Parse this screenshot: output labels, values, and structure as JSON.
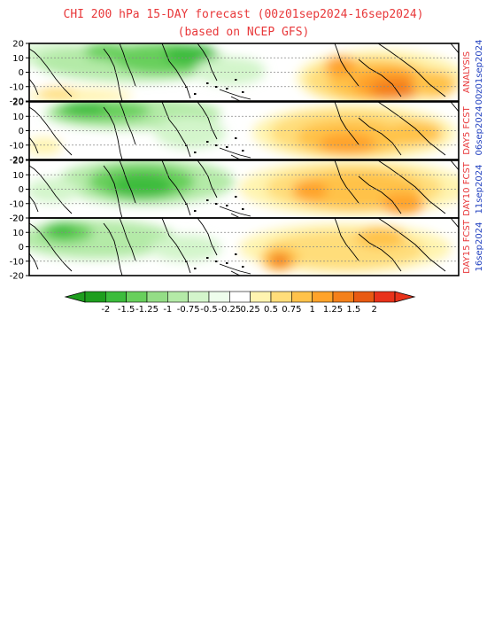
{
  "title_line1": "CHI 200 hPa 15-DAY forecast (00z01sep2024-16sep2024)",
  "title_line2": "(based on NCEP GFS)",
  "lat_ticks": [
    "20",
    "10",
    "0",
    "-10",
    "-20"
  ],
  "panels": [
    {
      "label": "ANALYSIS",
      "date": "00z01sep2024"
    },
    {
      "label": "DAY5 FCST",
      "date": "06sep2024"
    },
    {
      "label": "DAY10 FCST",
      "date": "11sep2024"
    },
    {
      "label": "DAY15 FCST",
      "date": "16sep2024"
    }
  ],
  "colorbar": {
    "labels": [
      "-2",
      "-1.5",
      "-1.25",
      "-1",
      "-0.75",
      "-0.5",
      "-0.25",
      "0.25",
      "0.5",
      "0.75",
      "1",
      "1.25",
      "1.5",
      "2"
    ],
    "colors": [
      "#1e9e1e",
      "#3cbc3c",
      "#68cf5c",
      "#94dd86",
      "#b4eaa7",
      "#d3f5cb",
      "#eefdec",
      "#ffffff",
      "#fff4b0",
      "#ffdd7a",
      "#ffc24a",
      "#ffa32a",
      "#f4801a",
      "#e85a12",
      "#e8321a"
    ],
    "end_left": "#1e9e1e",
    "end_right": "#e8321a"
  }
}
